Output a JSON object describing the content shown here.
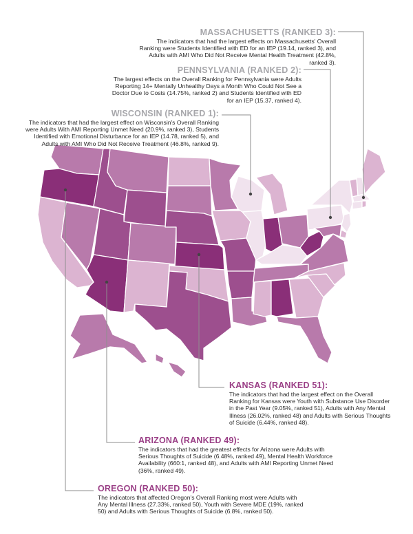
{
  "colors": {
    "top": "#f1e3ee",
    "high": "#dcb4d1",
    "mid": "#b87aab",
    "low": "#9d4f8e",
    "bottom": "#8a2f78",
    "leader": "#8e8e8e",
    "title_gray": "#a7a7ab",
    "title_purple": "#9a3f86"
  },
  "callouts": {
    "massachusetts": {
      "title": "MASSACHUSETTS (RANKED 3):",
      "body": "The indicators that had the largest effects on Massachusetts' Overall Ranking were Students Identified with ED for an IEP (19.14, ranked 3), and Adults with AMI Who Did Not Receive Mental Health Treatment (42.8%, ranked 3)."
    },
    "pennsylvania": {
      "title": "PENNSYLVANIA (RANKED 2):",
      "body": "The largest effects on the Overall Ranking for Pennsylvania were Adults Reporting 14+ Mentally Unhealthy Days a Month Who Could Not See a Doctor Due to Costs (14.75%, ranked 2) and Students Identified with ED for an IEP (15.37, ranked 4)."
    },
    "wisconsin": {
      "title": "WISCONSIN (RANKED 1):",
      "body": "The indicators that had the largest effect on Wisconsin's Overall Ranking were Adults With AMI Reporting Unmet Need (20.9%, ranked 3), Students Identified with Emotional Disturbance for an IEP (14.78, ranked 5), and Adults with AMI Who Did Not Receive Treatment (46.8%, ranked 9)."
    },
    "kansas": {
      "title": "KANSAS (RANKED 51):",
      "body": "The indicators that had the largest effect on the Overall Ranking for Kansas were Youth with Substance Use Disorder in the Past Year (9.05%, ranked 51), Adults with Any Mental Illness (26.02%, ranked 48) and Adults with Serious Thoughts of Suicide (6.44%, ranked 48)."
    },
    "arizona": {
      "title": "ARIZONA (RANKED 49):",
      "body": "The indicators that had the greatest effects for Arizona were Adults with Serious Thoughts of Suicide (6.48%, ranked 49), Mental Health Workforce Availability (660:1, ranked 48), and Adults with AMI Reporting Unmet Need (36%, ranked 49)."
    },
    "oregon": {
      "title": "OREGON (RANKED 50):",
      "body": "The indicators that affected Oregon's Overall Ranking most were Adults with Any Mental Illness (27.33%, ranked 50), Youth with Severe MDE (19%, ranked 50) and Adults with Serious Thoughts of Suicide (6.8%, ranked 50)."
    }
  },
  "states": [
    {
      "id": "WA",
      "tier": "mid"
    },
    {
      "id": "OR",
      "tier": "bottom"
    },
    {
      "id": "CA",
      "tier": "high"
    },
    {
      "id": "NV",
      "tier": "mid"
    },
    {
      "id": "ID",
      "tier": "low"
    },
    {
      "id": "MT",
      "tier": "mid"
    },
    {
      "id": "WY",
      "tier": "low"
    },
    {
      "id": "UT",
      "tier": "low"
    },
    {
      "id": "AZ",
      "tier": "bottom"
    },
    {
      "id": "CO",
      "tier": "mid"
    },
    {
      "id": "NM",
      "tier": "high"
    },
    {
      "id": "ND",
      "tier": "high"
    },
    {
      "id": "SD",
      "tier": "mid"
    },
    {
      "id": "NE",
      "tier": "low"
    },
    {
      "id": "KS",
      "tier": "bottom"
    },
    {
      "id": "OK",
      "tier": "high"
    },
    {
      "id": "TX",
      "tier": "low"
    },
    {
      "id": "MN",
      "tier": "mid"
    },
    {
      "id": "IA",
      "tier": "high"
    },
    {
      "id": "MO",
      "tier": "low"
    },
    {
      "id": "AR",
      "tier": "low"
    },
    {
      "id": "LA",
      "tier": "mid"
    },
    {
      "id": "WI",
      "tier": "top"
    },
    {
      "id": "IL",
      "tier": "top"
    },
    {
      "id": "MI",
      "tier": "high"
    },
    {
      "id": "IN",
      "tier": "bottom"
    },
    {
      "id": "OH",
      "tier": "mid"
    },
    {
      "id": "KY",
      "tier": "top"
    },
    {
      "id": "TN",
      "tier": "mid"
    },
    {
      "id": "MS",
      "tier": "high"
    },
    {
      "id": "AL",
      "tier": "bottom"
    },
    {
      "id": "GA",
      "tier": "high"
    },
    {
      "id": "FL",
      "tier": "mid"
    },
    {
      "id": "SC",
      "tier": "high"
    },
    {
      "id": "NC",
      "tier": "high"
    },
    {
      "id": "VA",
      "tier": "mid"
    },
    {
      "id": "WV",
      "tier": "bottom"
    },
    {
      "id": "PA",
      "tier": "top"
    },
    {
      "id": "NY",
      "tier": "top"
    },
    {
      "id": "VT",
      "tier": "high"
    },
    {
      "id": "NH",
      "tier": "top"
    },
    {
      "id": "ME",
      "tier": "high"
    },
    {
      "id": "MA",
      "tier": "top"
    },
    {
      "id": "CT",
      "tier": "top"
    },
    {
      "id": "RI",
      "tier": "high"
    },
    {
      "id": "NJ",
      "tier": "top"
    },
    {
      "id": "DE",
      "tier": "high"
    },
    {
      "id": "MD",
      "tier": "mid"
    },
    {
      "id": "AK",
      "tier": "mid"
    },
    {
      "id": "HI",
      "tier": "mid"
    }
  ]
}
